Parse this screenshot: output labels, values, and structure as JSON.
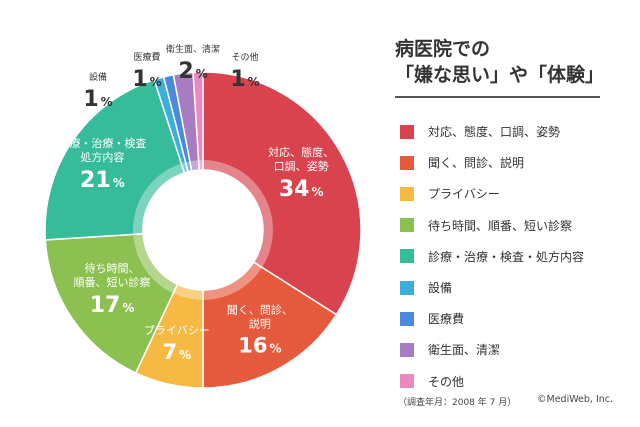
{
  "title": {
    "line1": "病医院での",
    "line2": "「嫌な思い」や「体験」"
  },
  "colors": {
    "accent_text": "#ffffff",
    "small_label_text": "#333333"
  },
  "chart_data": {
    "type": "pie",
    "donut": true,
    "title": "病医院での「嫌な思い」や「体験」",
    "legend_position": "right",
    "unit": "%",
    "slices": [
      {
        "label": "対応、態度、口調、姿勢",
        "chart_label": [
          "対応、態度、",
          "口調、姿勢"
        ],
        "value": 34,
        "color": "#d9434e"
      },
      {
        "label": "聞く、問診、説明",
        "chart_label": [
          "聞く、問診、",
          "説明"
        ],
        "value": 16,
        "color": "#e55a3d"
      },
      {
        "label": "プライバシー",
        "chart_label": [
          "プライバシー"
        ],
        "value": 7,
        "color": "#f5b944"
      },
      {
        "label": "待ち時間、順番、短い診察",
        "chart_label": [
          "待ち時間、",
          "順番、短い診察"
        ],
        "value": 17,
        "color": "#8cc152"
      },
      {
        "label": "診療・治療・検査・処方内容",
        "chart_label": [
          "診療・治療・検査",
          "処方内容"
        ],
        "value": 21,
        "color": "#37bc9b"
      },
      {
        "label": "設備",
        "chart_label": [
          "設備"
        ],
        "value": 1,
        "color": "#3bafda"
      },
      {
        "label": "医療費",
        "chart_label": [
          "医療費"
        ],
        "value": 1,
        "color": "#4a89dc"
      },
      {
        "label": "衛生面、清潔",
        "chart_label": [
          "衛生面、清潔"
        ],
        "value": 2,
        "color": "#a77cc2"
      },
      {
        "label": "その他",
        "chart_label": [
          "その他"
        ],
        "value": 1,
        "color": "#ec87c0"
      }
    ]
  },
  "footnote": "（調査年月：2008 年 7 月）",
  "credit": "©MediWeb, Inc."
}
